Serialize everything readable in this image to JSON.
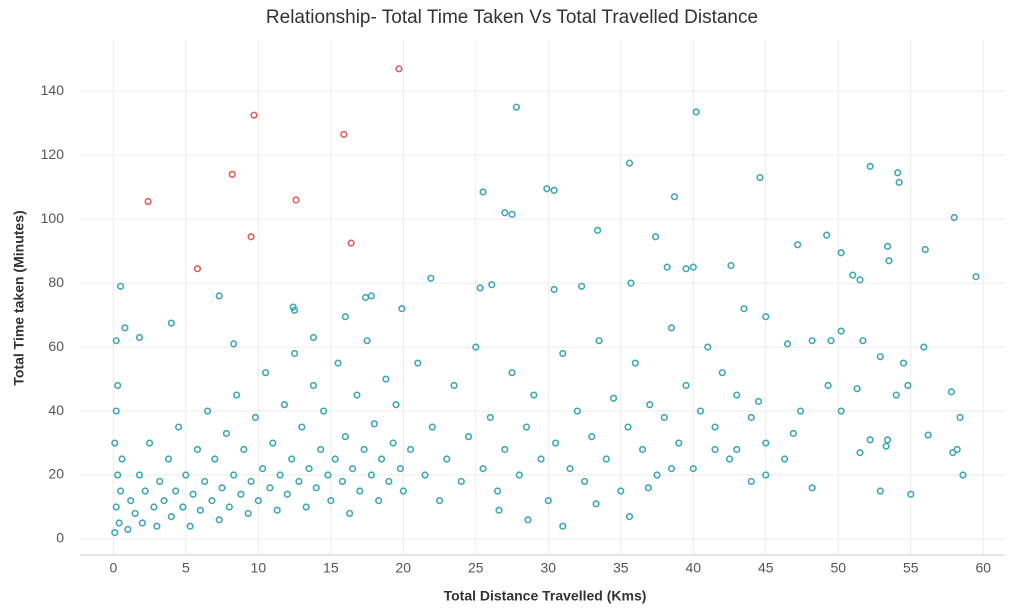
{
  "chart_data": {
    "type": "scatter",
    "title": "Relationship- Total Time Taken Vs Total Travelled Distance",
    "x_label": "Total Distance Travelled (Kms)",
    "y_label": "Total Time taken (Minutes)",
    "xlim": [
      -2.3,
      61.5
    ],
    "xticks": [
      0,
      5,
      10,
      15,
      20,
      25,
      30,
      35,
      40,
      45,
      50,
      55,
      60
    ],
    "ylim": [
      -5,
      156
    ],
    "yticks": [
      0,
      20,
      40,
      60,
      80,
      100,
      120,
      140
    ],
    "grid": true,
    "series": [
      {
        "color": "#3fa6b8",
        "x": [
          0.5,
          27.8,
          40.2,
          35.6,
          44.6,
          52.2,
          54.1,
          54.2,
          25.5,
          29.9,
          30.4,
          27.0,
          27.5,
          38.7,
          58.0,
          33.4,
          37.4,
          49.2,
          47.2,
          53.4,
          56.0,
          53.5,
          50.2,
          42.6,
          39.5,
          40.0,
          51.0,
          51.5,
          59.5,
          21.9,
          26.1,
          25.3,
          30.4,
          32.3,
          35.7,
          38.2,
          7.3,
          4.0,
          0.8,
          0.2,
          1.8,
          8.3,
          12.4,
          12.5,
          17.4,
          17.8,
          13.8,
          16.0,
          19.9,
          45.0,
          46.5,
          48.2,
          49.5,
          50.2,
          51.7,
          52.9,
          55.9,
          54.5,
          57.8,
          58.4,
          56.2,
          58.6,
          58.2,
          55.0,
          52.9,
          48.2,
          45.0,
          44.0,
          47.4,
          50.2,
          52.2,
          53.4,
          51.5,
          53.3,
          57.9,
          54.0,
          51.3,
          54.8,
          49.3,
          46.9,
          46.3,
          43.0,
          41.5,
          38.5,
          36.9,
          35.6,
          33.3,
          31.0,
          28.6,
          26.6,
          0.1,
          0.2,
          0.3,
          0.1,
          0.4,
          0.5,
          0.2,
          0.6,
          0.3,
          1.0,
          1.2,
          1.5,
          1.8,
          2.0,
          2.2,
          2.5,
          2.8,
          3.0,
          3.2,
          3.5,
          3.8,
          4.0,
          4.3,
          4.5,
          4.8,
          5.0,
          5.3,
          5.5,
          5.8,
          6.0,
          6.3,
          6.5,
          6.8,
          7.0,
          7.3,
          7.5,
          7.8,
          8.0,
          8.3,
          8.5,
          8.8,
          9.0,
          9.3,
          9.5,
          9.8,
          10.0,
          10.3,
          10.5,
          10.8,
          11.0,
          11.3,
          11.5,
          11.8,
          12.0,
          12.3,
          12.5,
          12.8,
          13.0,
          13.3,
          13.5,
          13.8,
          14.0,
          14.3,
          14.5,
          14.8,
          15.0,
          15.3,
          15.5,
          15.8,
          16.0,
          16.3,
          16.5,
          16.8,
          17.0,
          17.3,
          17.5,
          17.8,
          18.0,
          18.3,
          18.5,
          18.8,
          19.0,
          19.3,
          19.5,
          19.8,
          20.0,
          20.5,
          21.0,
          21.5,
          22.0,
          22.5,
          23.0,
          23.5,
          24.0,
          24.5,
          25.0,
          25.5,
          26.0,
          26.5,
          27.0,
          27.5,
          28.0,
          28.5,
          29.0,
          29.5,
          30.0,
          30.5,
          31.0,
          31.5,
          32.0,
          32.5,
          33.0,
          33.5,
          34.0,
          34.5,
          35.0,
          35.5,
          36.0,
          36.5,
          37.0,
          37.5,
          38.0,
          38.5,
          39.0,
          39.5,
          40.0,
          40.5,
          41.0,
          41.5,
          42.0,
          42.5,
          43.0,
          43.5,
          44.0,
          44.5,
          45.0
        ],
        "values": [
          79,
          135,
          133.5,
          117.5,
          113,
          116.5,
          114.5,
          111.5,
          108.5,
          109.5,
          109,
          102,
          101.5,
          107,
          100.5,
          96.5,
          94.5,
          95,
          92,
          91.5,
          90.5,
          87,
          89.5,
          85.5,
          84.5,
          85,
          82.5,
          81,
          82,
          81.5,
          79.5,
          78.5,
          78,
          79,
          80,
          85,
          76,
          67.5,
          66,
          62,
          63,
          61,
          72.5,
          71.5,
          75.5,
          76,
          63,
          69.5,
          72,
          69.5,
          61,
          62,
          62,
          65,
          62,
          57,
          60,
          55,
          46,
          38,
          32.5,
          20,
          28,
          14,
          15,
          16,
          20,
          18,
          40,
          40,
          31,
          31,
          27,
          29,
          27,
          45,
          47,
          48,
          48,
          33,
          25,
          28,
          28,
          22,
          16,
          7,
          11,
          4,
          6,
          9,
          2,
          10,
          20,
          30,
          5,
          15,
          40,
          25,
          48,
          3,
          12,
          8,
          20,
          5,
          15,
          30,
          10,
          4,
          18,
          12,
          25,
          7,
          15,
          35,
          10,
          20,
          4,
          14,
          28,
          9,
          18,
          40,
          12,
          25,
          6,
          16,
          33,
          10,
          20,
          45,
          14,
          28,
          8,
          18,
          38,
          12,
          22,
          52,
          16,
          30,
          9,
          20,
          42,
          14,
          25,
          58,
          18,
          35,
          10,
          22,
          48,
          16,
          28,
          40,
          20,
          12,
          25,
          55,
          18,
          32,
          8,
          22,
          45,
          15,
          28,
          62,
          20,
          36,
          12,
          25,
          50,
          18,
          30,
          42,
          22,
          15,
          28,
          55,
          20,
          35,
          12,
          25,
          48,
          18,
          32,
          60,
          22,
          38,
          15,
          28,
          52,
          20,
          35,
          45,
          25,
          12,
          30,
          58,
          22,
          40,
          18,
          32,
          62,
          25,
          44,
          15,
          35,
          55,
          28,
          42,
          20,
          38,
          66,
          30,
          48,
          22,
          40,
          60,
          35,
          52,
          25,
          45,
          72,
          38,
          43,
          30
        ]
      },
      {
        "color": "#e05b5b",
        "x": [
          2.4,
          5.8,
          8.2,
          9.7,
          9.5,
          12.6,
          15.9,
          16.4,
          19.7
        ],
        "values": [
          105.5,
          84.5,
          114,
          132.5,
          94.5,
          106,
          126.5,
          92.5,
          147
        ]
      }
    ]
  }
}
